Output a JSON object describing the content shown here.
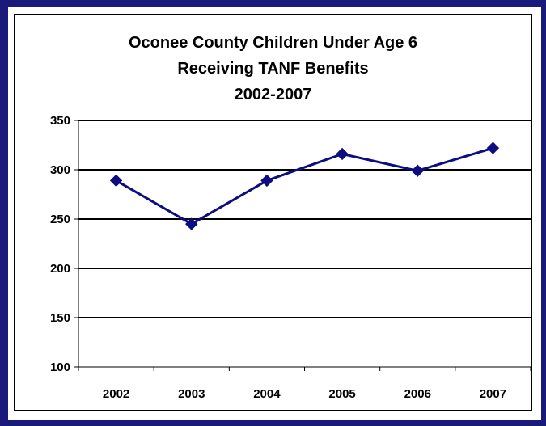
{
  "chart_data": {
    "type": "line",
    "title": [
      "Oconee County Children Under Age 6",
      "Receiving TANF Benefits",
      "2002-2007"
    ],
    "xlabel": "",
    "ylabel": "",
    "categories": [
      "2002",
      "2003",
      "2004",
      "2005",
      "2006",
      "2007"
    ],
    "series": [
      {
        "values": [
          289,
          245,
          289,
          316,
          299,
          322
        ],
        "color": "#0d0d80"
      }
    ],
    "ylim": [
      100,
      350
    ],
    "yticks": [
      "100",
      "150",
      "200",
      "250",
      "300",
      "350"
    ],
    "grid": true,
    "legend": "none"
  },
  "colors": {
    "frame": "#1a1a7a",
    "line": "#0d0d80",
    "grid": "#000000"
  }
}
